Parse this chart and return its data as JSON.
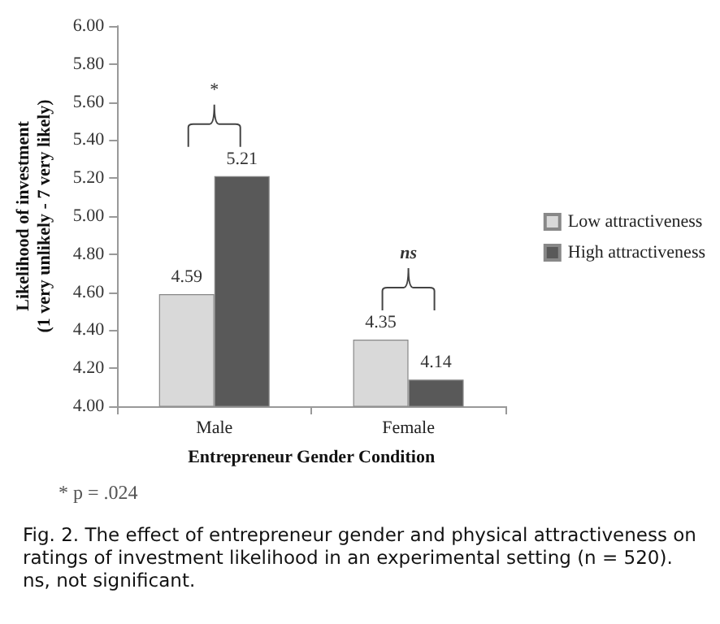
{
  "chart_data": {
    "type": "bar",
    "xlabel": "Entrepreneur Gender Condition",
    "ylabel": "Likelihood of investment\n(1 very unlikely - 7 very likely)",
    "categories": [
      "Male",
      "Female"
    ],
    "series": [
      {
        "name": "Low attractiveness",
        "color": "#d9d9d9",
        "values": [
          4.59,
          4.35
        ]
      },
      {
        "name": "High attractiveness",
        "color": "#595959",
        "values": [
          5.21,
          4.14
        ]
      }
    ],
    "ylim": [
      4.0,
      6.0
    ],
    "yticks": [
      {
        "value": 4.0,
        "label": "4.00"
      },
      {
        "value": 4.2,
        "label": "4.20"
      },
      {
        "value": 4.4,
        "label": "4.40"
      },
      {
        "value": 4.6,
        "label": "4.60"
      },
      {
        "value": 4.8,
        "label": "4.80"
      },
      {
        "value": 5.0,
        "label": "5.00"
      },
      {
        "value": 5.2,
        "label": "5.20"
      },
      {
        "value": 5.4,
        "label": "5.40"
      },
      {
        "value": 5.6,
        "label": "5.60"
      },
      {
        "value": 5.8,
        "label": "5.80"
      },
      {
        "value": 6.0,
        "label": "6.00"
      }
    ],
    "data_labels": true,
    "grid": false,
    "legend": "right",
    "annotations": [
      "*",
      "ns",
      "* p = .024",
      "Fig. 2.  The effect of entrepreneur gender and physical attractiveness on ratings of investment likelihood in an experimental setting (n = 520). ns, not significant."
    ]
  }
}
